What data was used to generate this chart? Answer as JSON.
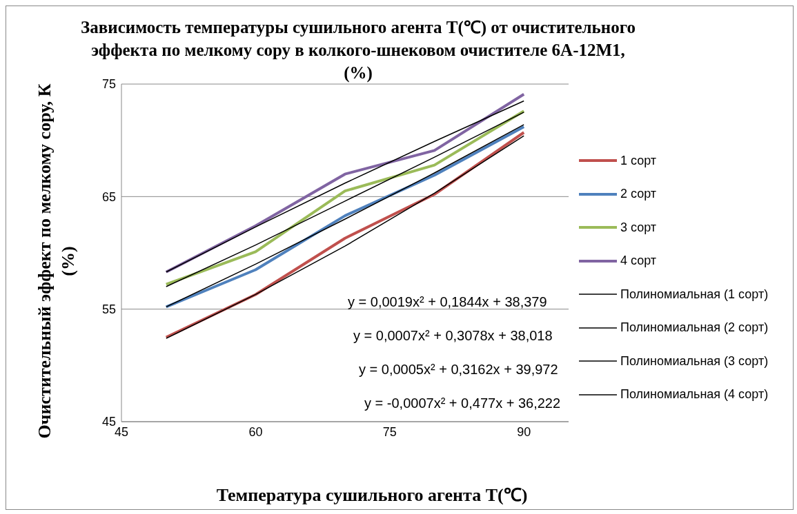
{
  "chart_data": {
    "type": "line",
    "title": "Зависимость температуры сушильного агента T(℃) от очистительного эффекта по мелкому сору в колкого-шнековом очистителе 6А-12М1, (%)",
    "xlabel": "Температура сушильного агента T(℃)",
    "ylabel": "Очистительный эффект по мелкому сору, К (%)",
    "x": [
      50,
      60,
      70,
      80,
      90
    ],
    "series": [
      {
        "name": "1 сорт",
        "color": "#c0504d",
        "values": [
          52.5,
          56.3,
          61.3,
          65.2,
          70.7
        ]
      },
      {
        "name": "2 сорт",
        "color": "#4f81bd",
        "values": [
          55.2,
          58.5,
          63.3,
          66.9,
          71.2
        ]
      },
      {
        "name": "3 сорт",
        "color": "#9bbb59",
        "values": [
          57.2,
          60.1,
          65.5,
          67.8,
          72.6
        ]
      },
      {
        "name": "4 сорт",
        "color": "#8064a2",
        "values": [
          58.3,
          62.4,
          67.0,
          69.1,
          74.1
        ]
      },
      {
        "name": "Полиномиальная (1 сорт)",
        "color": "#000000",
        "values": [
          52.4,
          56.3,
          60.6,
          65.3,
          70.4
        ]
      },
      {
        "name": "Полиномиальная (2 сорт)",
        "color": "#000000",
        "values": [
          55.2,
          59.0,
          63.0,
          67.1,
          71.4
        ]
      },
      {
        "name": "Полиномиальная (3 сорт)",
        "color": "#000000",
        "values": [
          57.0,
          60.7,
          64.6,
          68.5,
          72.5
        ]
      },
      {
        "name": "Полиномиальная (4 сорт)",
        "color": "#000000",
        "values": [
          58.3,
          62.3,
          66.2,
          69.9,
          73.5
        ]
      }
    ],
    "annotations": [
      "y = 0,0019x² + 0,1844x + 38,379",
      "y = 0,0007x² + 0,3078x + 38,018",
      "y = 0,0005x² + 0,3162x + 39,972",
      "y = -0,0007x² + 0,477x + 36,222"
    ],
    "xlim": [
      45,
      95
    ],
    "xticks": [
      45,
      60,
      75,
      90
    ],
    "ylim": [
      45,
      75
    ],
    "yticks": [
      45,
      55,
      65,
      75
    ],
    "grid": "y",
    "legend": "right",
    "marker": "none",
    "line_style": "solid"
  }
}
